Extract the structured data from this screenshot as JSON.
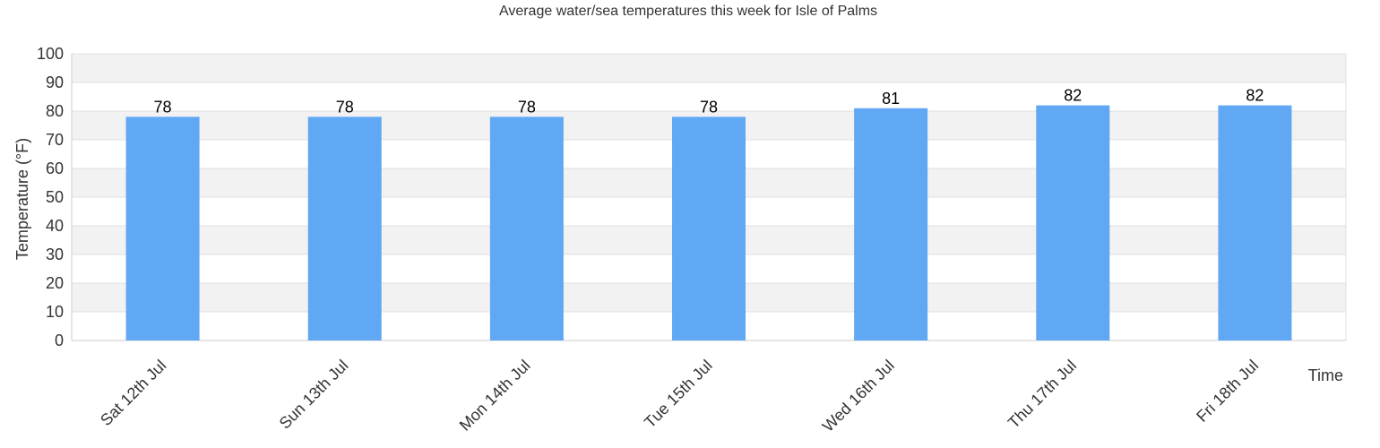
{
  "chart_data": {
    "type": "bar",
    "title": "Average water/sea temperatures this week for Isle of Palms",
    "xlabel": "Time",
    "ylabel": "Temperature (°F)",
    "categories": [
      "Sat 12th Jul",
      "Sun 13th Jul",
      "Mon 14th Jul",
      "Tue 15th Jul",
      "Wed 16th Jul",
      "Thu 17th Jul",
      "Fri 18th Jul"
    ],
    "values": [
      78,
      78,
      78,
      78,
      81,
      82,
      82
    ],
    "value_labels": [
      "78",
      "78",
      "78",
      "78",
      "81",
      "82",
      "82"
    ],
    "ylim": [
      0,
      100
    ],
    "yticks": [
      0,
      10,
      20,
      30,
      40,
      50,
      60,
      70,
      80,
      90,
      100
    ],
    "ytick_labels": [
      "0",
      "10",
      "20",
      "30",
      "40",
      "50",
      "60",
      "70",
      "80",
      "90",
      "100"
    ],
    "grid": true,
    "legend": "none",
    "colors": {
      "bar": "#60a7f4",
      "band": "#f2f2f2",
      "grid": "#e0e0e0",
      "axis": "#cccccc",
      "text": "#333333",
      "data_label": "#000000"
    }
  }
}
